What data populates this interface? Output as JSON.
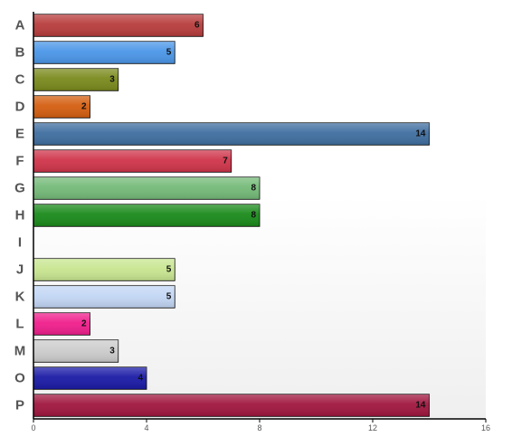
{
  "chart_data": {
    "type": "bar",
    "orientation": "horizontal",
    "categories": [
      "A",
      "B",
      "C",
      "D",
      "E",
      "F",
      "G",
      "H",
      "I",
      "J",
      "K",
      "L",
      "M",
      "O",
      "P"
    ],
    "values": [
      6,
      5,
      3,
      2,
      14,
      7,
      8,
      8,
      0,
      5,
      5,
      2,
      3,
      4,
      14
    ],
    "value_labels": [
      "6",
      "5",
      "3",
      "2",
      "14",
      "7",
      "8",
      "8",
      "",
      "5",
      "5",
      "2",
      "3",
      "4",
      "14"
    ],
    "colors": [
      "#b83c3c",
      "#4a96e8",
      "#7a8a1c",
      "#d45e10",
      "#3f6ea0",
      "#d0344a",
      "#74ba78",
      "#1a8a1a",
      "#ffffff",
      "#c8e690",
      "#c2d6f4",
      "#f01e8c",
      "#cccccc",
      "#1a1aa6",
      "#a0163e"
    ],
    "xlim": [
      0,
      16
    ],
    "xticks": [
      0,
      4,
      8,
      12,
      16
    ],
    "xtick_labels": [
      "0",
      "4",
      "8",
      "12",
      "16"
    ],
    "title": "",
    "xlabel": "",
    "ylabel": "",
    "grid": false,
    "legend": "none"
  }
}
